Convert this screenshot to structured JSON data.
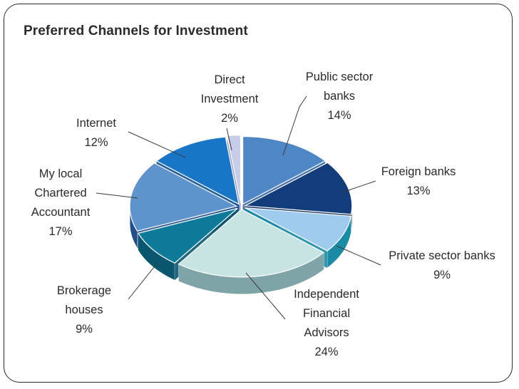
{
  "chart_data": {
    "type": "pie",
    "title": "Preferred Channels for Investment",
    "slices": [
      {
        "label": "Public sector banks",
        "value": 14,
        "value_label": "14%",
        "color": "#4f86c6",
        "side": "#3a679c"
      },
      {
        "label": "Foreign banks",
        "value": 13,
        "value_label": "13%",
        "color": "#123c7a",
        "side": "#0b2853"
      },
      {
        "label": "Private sector banks",
        "value": 9,
        "value_label": "9%",
        "color": "#9ecbee",
        "side": "#1b8aa5"
      },
      {
        "label": "Independent Financial Advisors",
        "value": 24,
        "value_label": "24%",
        "color": "#c8e4e2",
        "side": "#7fa4a8"
      },
      {
        "label": "Brokerage houses",
        "value": 9,
        "value_label": "9%",
        "color": "#0e7a9a",
        "side": "#0a566e"
      },
      {
        "label": "My local Chartered Accountant",
        "value": 17,
        "value_label": "17%",
        "color": "#5e93cc",
        "side": "#224f8a"
      },
      {
        "label": "Internet",
        "value": 12,
        "value_label": "12%",
        "color": "#1976c6",
        "side": "#124f8a"
      },
      {
        "label": "Direct Investment",
        "value": 2,
        "value_label": "2%",
        "color": "#c5cde8",
        "side": "#8d97c2"
      }
    ]
  }
}
